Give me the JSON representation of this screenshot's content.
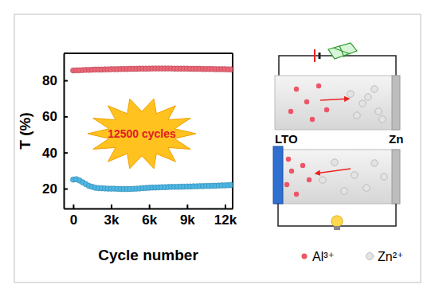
{
  "chart_data": {
    "type": "line",
    "x_label": "Cycle number",
    "y_label": "T (%)",
    "annotation": "12500 cycles",
    "x": [
      0,
      250,
      500,
      750,
      1000,
      1250,
      1500,
      1750,
      2000,
      2250,
      2500,
      2750,
      3000,
      3250,
      3500,
      3750,
      4000,
      4250,
      4500,
      4750,
      5000,
      5250,
      5500,
      5750,
      6000,
      6250,
      6500,
      6750,
      7000,
      7250,
      7500,
      7750,
      8000,
      8250,
      8500,
      8750,
      9000,
      9250,
      9500,
      9750,
      10000,
      10250,
      10500,
      10750,
      11000,
      11250,
      11500,
      11750,
      12000,
      12250,
      12500
    ],
    "series": [
      {
        "color": "#ee6677",
        "marker": "circle",
        "line_style": "solid",
        "values": [
          85.5,
          85.6,
          85.6,
          85.7,
          85.8,
          85.8,
          85.9,
          86,
          86,
          86,
          86.1,
          86.1,
          86.2,
          86.2,
          86.2,
          86.3,
          86.3,
          86.3,
          86.4,
          86.4,
          86.4,
          86.5,
          86.5,
          86.5,
          86.5,
          86.6,
          86.6,
          86.6,
          86.6,
          86.6,
          86.6,
          86.6,
          86.5,
          86.5,
          86.5,
          86.5,
          86.5,
          86.4,
          86.4,
          86.4,
          86.4,
          86.3,
          86.3,
          86.3,
          86.3,
          86.2,
          86.2,
          86.2,
          86.2,
          86.1,
          86.1
        ]
      },
      {
        "color": "#4cb8e6",
        "marker": "circle",
        "line_style": "solid",
        "values": [
          25,
          25.2,
          24.5,
          23.5,
          22.5,
          21.5,
          21,
          20.5,
          20.3,
          20.2,
          20.1,
          20,
          20,
          20,
          19.9,
          19.8,
          19.8,
          19.8,
          19.8,
          19.9,
          20,
          20.1,
          20.3,
          20.4,
          20.5,
          20.6,
          20.6,
          20.7,
          20.8,
          20.8,
          20.9,
          21,
          21,
          21,
          21.1,
          21.1,
          21.2,
          21.2,
          21.3,
          21.3,
          21.4,
          21.4,
          21.5,
          21.5,
          21.6,
          21.6,
          21.7,
          21.8,
          21.8,
          21.9,
          22
        ]
      }
    ],
    "xlim": [
      -750,
      12600
    ],
    "xticks": [
      0,
      {
        "value": 3000,
        "label": "3k"
      },
      {
        "value": 6000,
        "label": "6k"
      },
      {
        "value": 9000,
        "label": "9k"
      },
      {
        "value": 12000,
        "label": "12k"
      }
    ],
    "ylim": [
      9,
      95
    ],
    "yticks": [
      20,
      40,
      60,
      80
    ],
    "grid": false
  },
  "diagram": {
    "electrodes": [
      "LTO",
      "Zn"
    ],
    "ions": [
      {
        "label": "Al³⁺",
        "color": "#ee5566"
      },
      {
        "label": "Zn²⁺",
        "color": "#e4e4e4"
      }
    ]
  }
}
